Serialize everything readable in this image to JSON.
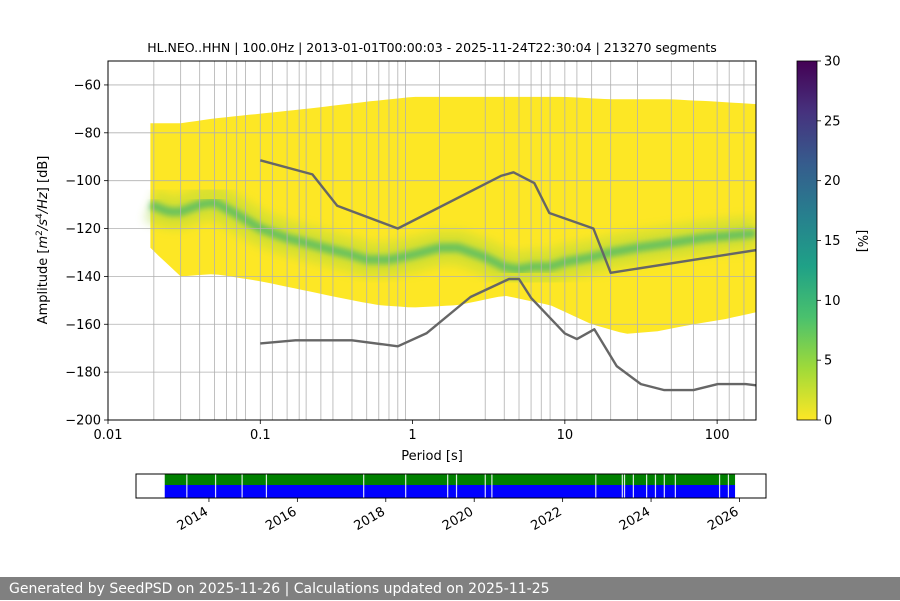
{
  "chart_data": [
    {
      "type": "heatmap",
      "title": "HL.NEO..HHN | 100.0Hz | 2013-01-01T00:00:03 - 2025-11-24T22:30:04 | 213270 segments",
      "xlabel": "Period [s]",
      "ylabel_parts": [
        "Amplitude [",
        "m",
        "2",
        "/",
        "s",
        "4",
        "/",
        "Hz",
        "] [dB]"
      ],
      "xscale": "log",
      "xlim": [
        0.01,
        180
      ],
      "ylim": [
        -200,
        -50
      ],
      "xtick_values": [
        0.01,
        0.1,
        1,
        10,
        100
      ],
      "xtick_labels": [
        "0.01",
        "0.1",
        "1",
        "10",
        "100"
      ],
      "ytick_values": [
        -60,
        -80,
        -100,
        -120,
        -140,
        -160,
        -180,
        -200
      ],
      "ytick_labels": [
        "−60",
        "−80",
        "−100",
        "−120",
        "−140",
        "−160",
        "−180",
        "−200"
      ],
      "grid": true,
      "psd_mode": {
        "period": [
          0.019,
          0.025,
          0.03,
          0.04,
          0.05,
          0.07,
          0.1,
          0.15,
          0.2,
          0.3,
          0.4,
          0.5,
          0.7,
          1,
          1.5,
          2,
          3,
          4,
          5,
          6,
          8,
          10,
          15,
          20,
          30,
          50,
          80,
          120,
          180
        ],
        "db": [
          -110,
          -113,
          -113,
          -110,
          -109,
          -114,
          -120,
          -124,
          -126,
          -129,
          -131,
          -133,
          -133,
          -131,
          -128,
          -128,
          -132,
          -136,
          -137,
          -136,
          -136,
          -134,
          -132,
          -130,
          -128,
          -126,
          -124,
          -123,
          -122
        ]
      },
      "psd_band_upper": {
        "period": [
          0.019,
          0.03,
          0.05,
          0.1,
          0.2,
          0.5,
          1,
          2,
          5,
          10,
          20,
          50,
          100,
          180
        ],
        "db": [
          -76,
          -76,
          -74,
          -72,
          -70,
          -67,
          -65,
          -65,
          -65,
          -65,
          -66,
          -66,
          -67,
          -68
        ]
      },
      "psd_band_lower": {
        "period": [
          0.019,
          0.022,
          0.03,
          0.05,
          0.1,
          0.2,
          0.4,
          0.6,
          1,
          2,
          4,
          8,
          15,
          25,
          40,
          70,
          110,
          180
        ],
        "db": [
          -128,
          -132,
          -140,
          -139,
          -142,
          -146,
          -150,
          -152,
          -153,
          -152,
          -148,
          -152,
          -160,
          -164,
          -163,
          -160,
          -158,
          -155
        ]
      },
      "noise_models": [
        {
          "name": "NHNM",
          "period": [
            0.1,
            0.22,
            0.32,
            0.8,
            3.8,
            4.6,
            6.3,
            7.9,
            15.4,
            20,
            180
          ],
          "db": [
            -91.5,
            -97.4,
            -110.5,
            -120,
            -98,
            -96.5,
            -101,
            -113.5,
            -120,
            -138.5,
            -129
          ]
        },
        {
          "name": "NLNM",
          "period": [
            0.1,
            0.17,
            0.4,
            0.8,
            1.24,
            2.4,
            4.3,
            5,
            6,
            10,
            12,
            15.6,
            21.9,
            31.6,
            45,
            70,
            101,
            154,
            180
          ],
          "db": [
            -168,
            -166.7,
            -166.7,
            -169.2,
            -163.7,
            -148.6,
            -141.1,
            -141.1,
            -149,
            -163.8,
            -166.2,
            -162.1,
            -177.5,
            -185,
            -187.5,
            -187.5,
            -185,
            -185,
            -185.5
          ]
        }
      ],
      "vertical_period_lines": [
        0.02,
        0.03,
        0.04,
        0.05,
        0.06,
        0.07,
        0.08,
        0.1,
        0.12,
        0.15,
        0.18,
        0.2,
        0.25,
        0.3,
        0.4,
        0.5,
        0.6,
        0.7,
        0.8,
        0.9,
        1.5,
        3,
        4,
        5,
        6,
        7,
        8,
        10,
        12,
        15,
        20,
        30,
        50,
        70,
        100,
        120,
        150
      ],
      "colorbar": {
        "label": "[%]",
        "min": 0,
        "max": 30,
        "ticks": [
          0,
          5,
          10,
          15,
          20,
          25,
          30
        ],
        "colors": [
          "#fde725",
          "#a0da39",
          "#4ac16d",
          "#1fa187",
          "#277f8e",
          "#365c8d",
          "#46327e",
          "#440154"
        ]
      },
      "data_colors": {
        "mode_color": "#44b86d",
        "heat_color": "#fde725",
        "model_color": "#666666"
      }
    },
    {
      "type": "timeline",
      "xlim_year": [
        2012.35,
        2026.6
      ],
      "xtick_years": [
        2014,
        2016,
        2018,
        2020,
        2022,
        2024,
        2026
      ],
      "xtick_labels": [
        "2014",
        "2016",
        "2018",
        "2020",
        "2022",
        "2024",
        "2026"
      ],
      "data_start": 2013.0,
      "data_end": 2025.9,
      "gaps": [
        2013.5,
        2014.15,
        2014.75,
        2015.3,
        2017.5,
        2018.45,
        2019.4,
        2019.6,
        2020.25,
        2020.4,
        2022.75,
        2023.35,
        2023.4,
        2023.6,
        2023.9,
        2024.1,
        2024.3,
        2024.55,
        2025.55,
        2025.75
      ],
      "colors": {
        "top": "#008000",
        "bottom": "#0000ff"
      }
    }
  ],
  "footer": {
    "text": "Generated by SeedPSD on 2025-11-26 | Calculations updated on 2025-11-25"
  }
}
